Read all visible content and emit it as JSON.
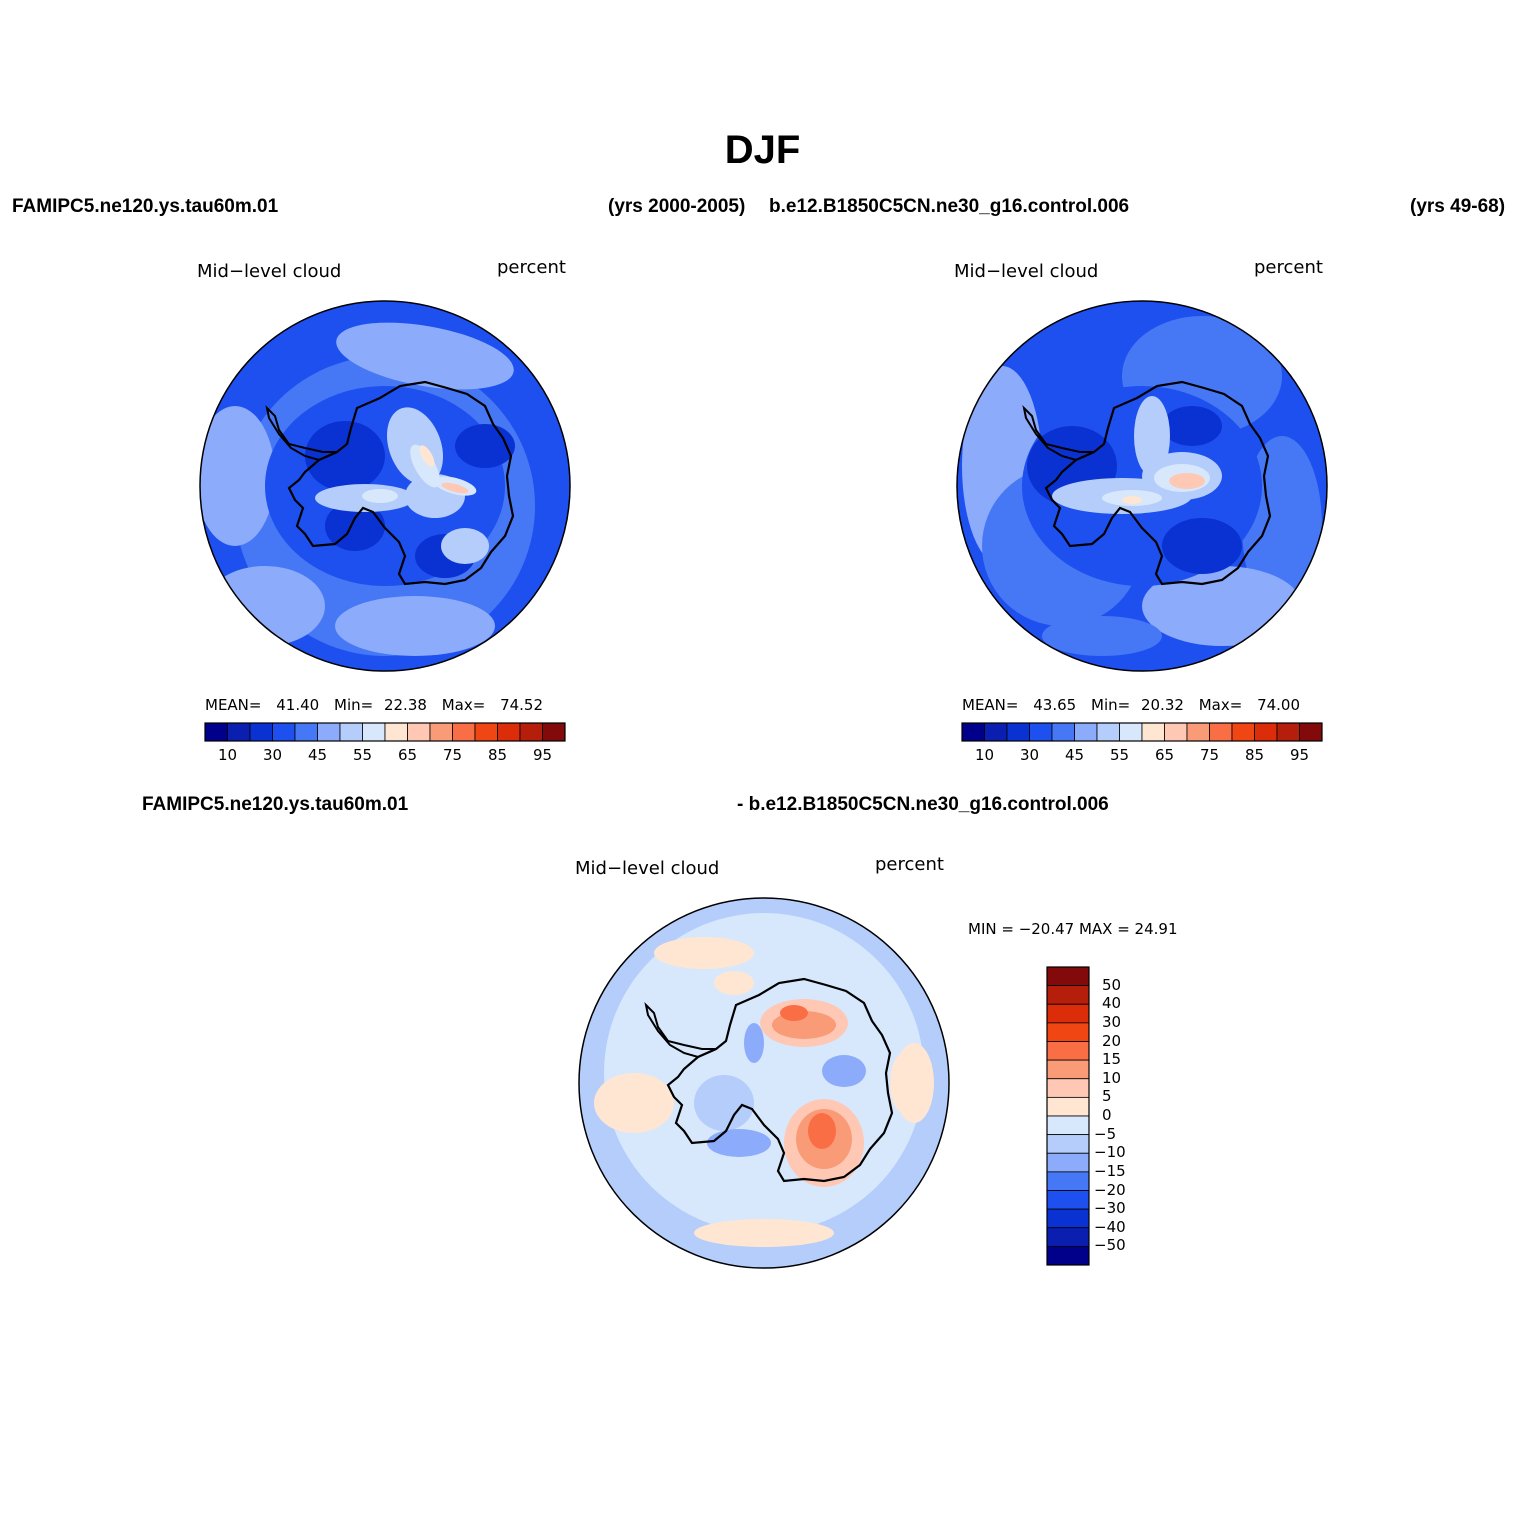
{
  "title": "DJF",
  "header_row1": {
    "left_case": "FAMIPC5.ne120.ys.tau60m.01",
    "left_years": "(yrs 2000-2005)",
    "right_case": "b.e12.B1850C5CN.ne30_g16.control.006",
    "right_years": "(yrs 49-68)"
  },
  "header_row2": {
    "left": "FAMIPC5.ne120.ys.tau60m.01",
    "right": "- b.e12.B1850C5CN.ne30_g16.control.006"
  },
  "panels": [
    {
      "variable": "Mid−level  cloud",
      "units": "percent",
      "mean_label": "MEAN=",
      "mean": "41.40",
      "min_label": "Min=",
      "min": "22.38",
      "max_label": "Max=",
      "max": "74.52"
    },
    {
      "variable": "Mid−level  cloud",
      "units": "percent",
      "mean_label": "MEAN=",
      "mean": "43.65",
      "min_label": "Min=",
      "min": "20.32",
      "max_label": "Max=",
      "max": "74.00"
    },
    {
      "variable": "Mid−level  cloud",
      "units": "percent",
      "minmax": "MIN = −20.47  MAX =   24.91"
    }
  ],
  "colorbar_abs": {
    "tick_labels": [
      "10",
      "30",
      "45",
      "55",
      "65",
      "75",
      "85",
      "95"
    ],
    "colors": [
      "#00008a",
      "#0a1eb0",
      "#0a32d2",
      "#1e50f0",
      "#4678f5",
      "#8cabfa",
      "#b4cdfa",
      "#d7e8fd",
      "#ffe6d2",
      "#ffc8b4",
      "#fa9b78",
      "#fa6e46",
      "#f04614",
      "#dc2d0a",
      "#b41e0a",
      "#820a0a"
    ]
  },
  "colorbar_diff": {
    "tick_labels": [
      "50",
      "40",
      "30",
      "20",
      "15",
      "10",
      "5",
      "0",
      "−5",
      "−10",
      "−15",
      "−20",
      "−30",
      "−40",
      "−50"
    ],
    "colors": [
      "#820a0a",
      "#b41e0a",
      "#dc2d0a",
      "#f04614",
      "#fa6e46",
      "#fa9b78",
      "#ffc8b4",
      "#ffe6d2",
      "#d7e8fd",
      "#b4cdfa",
      "#8cabfa",
      "#4678f5",
      "#1e50f0",
      "#0a32d2",
      "#0a1eb0",
      "#00008a"
    ]
  },
  "colors": {
    "outline": "#000000",
    "coast": "#000000"
  }
}
